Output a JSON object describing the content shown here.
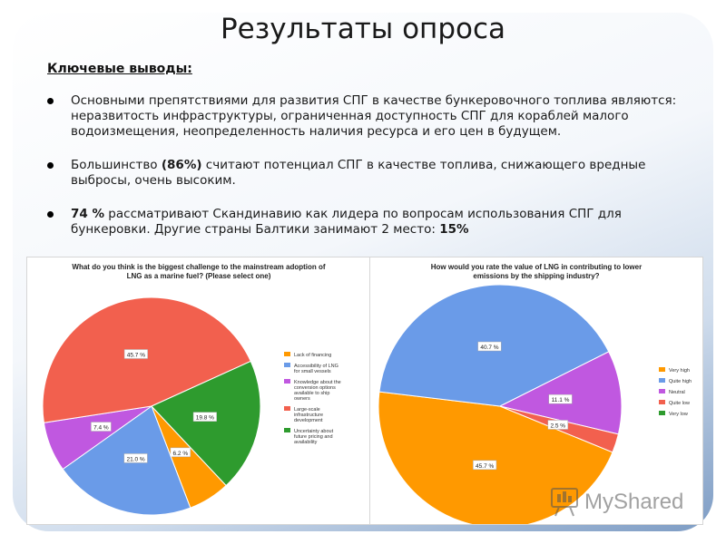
{
  "slide": {
    "title": "Результаты опроса",
    "subheading": "Ключевые выводы:",
    "bullets": [
      {
        "text": "Основными препятствиями для развития СПГ в качестве бункеровочного топлива являются: неразвитость инфраструктуры, ограниченная доступность СПГ для кораблей малого водоизмещения, неопределенность наличия ресурса и его цен в будущем."
      },
      {
        "pre": "Большинство ",
        "bold": "(86%)",
        "post": " считают потенциал СПГ в качестве топлива, снижающего вредные выбросы, очень высоким."
      },
      {
        "bold_start": "74 %",
        "mid": " рассматривают Скандинавию как лидера по вопросам использования СПГ для бункеровки. Другие страны Балтики занимают 2 место: ",
        "bold_end": "15%"
      }
    ],
    "watermark": "MyShared"
  },
  "colors": {
    "orange": "#ff9900",
    "blue": "#6a9be8",
    "purple": "#c058e0",
    "red": "#f2604e",
    "green": "#2e9b2e"
  },
  "chart_data": [
    {
      "type": "pie",
      "title": "What do you think is the biggest challenge to the mainstream adoption of LNG as a marine fuel? (Please select one)",
      "slices": [
        {
          "name": "Lack of financing",
          "value": 6.2,
          "label": "6.2 %",
          "color": "#ff9900"
        },
        {
          "name": "Accessibility of LNG for small vessels",
          "value": 21.0,
          "label": "21.0 %",
          "color": "#6a9be8"
        },
        {
          "name": "Knowledge about the conversion options available to ship owners",
          "value": 7.4,
          "label": "7.4 %",
          "color": "#c058e0"
        },
        {
          "name": "Large-scale infrastructure development",
          "value": 45.7,
          "label": "45.7 %",
          "color": "#f2604e"
        },
        {
          "name": "Uncertainty about future pricing and availability",
          "value": 19.8,
          "label": "19.8 %",
          "color": "#2e9b2e"
        }
      ],
      "legend": [
        "Lack of financing",
        "Accessibility of LNG for small vessels",
        "Knowledge about the conversion options available to ship owners",
        "Large-scale infrastructure development",
        "Uncertainty about future pricing and availability"
      ],
      "legend_placement": "right"
    },
    {
      "type": "pie",
      "title": "How would you rate the value of LNG in contributing to lower emissions by the shipping industry?",
      "slices": [
        {
          "name": "Very high",
          "value": 45.7,
          "label": "45.7 %",
          "color": "#ff9900"
        },
        {
          "name": "Quite high",
          "value": 40.7,
          "label": "40.7 %",
          "color": "#6a9be8"
        },
        {
          "name": "Neutral",
          "value": 11.1,
          "label": "11.1 %",
          "color": "#c058e0"
        },
        {
          "name": "Quite low",
          "value": 2.5,
          "label": "2.5 %",
          "color": "#f2604e"
        },
        {
          "name": "Very low",
          "value": 0,
          "label": "",
          "color": "#2e9b2e"
        }
      ],
      "legend": [
        "Very high",
        "Quite high",
        "Neutral",
        "Quite low",
        "Very low"
      ],
      "legend_placement": "right"
    }
  ]
}
